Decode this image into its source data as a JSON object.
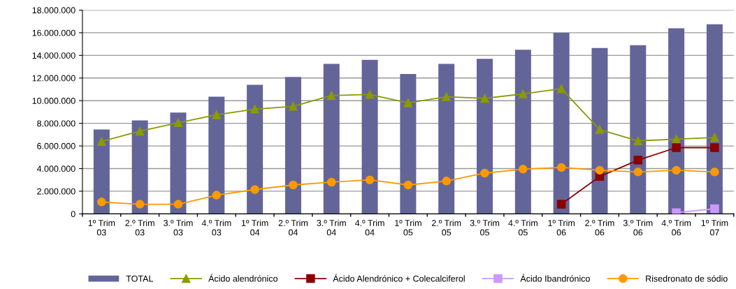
{
  "chart_data": {
    "type": "bar",
    "categories": [
      "1º Trim\n03",
      "2.º Trim\n03",
      "3.º Trim\n03",
      "4.º Trim\n03",
      "1º Trim\n04",
      "2.º Trim\n04",
      "3.º Trim\n04",
      "4.º Trim\n04",
      "1º Trim\n05",
      "2.º Trim\n05",
      "3.º Trim\n05",
      "4.º Trim\n05",
      "1º Trim\n06",
      "2.º Trim\n06",
      "3.º Trim\n06",
      "4.º Trim\n06",
      "1º Trim\n07"
    ],
    "series": [
      {
        "name": "TOTAL",
        "color": "#636599",
        "values": [
          7450000,
          8250000,
          8950000,
          10350000,
          11400000,
          12100000,
          13250000,
          13600000,
          12350000,
          13250000,
          13700000,
          14500000,
          16000000,
          14650000,
          14900000,
          16400000,
          16750000
        ]
      },
      {
        "name": "Ácido alendrónico",
        "type": "line",
        "color": "#8a9a00",
        "marker": "triangle",
        "values": [
          6400000,
          7300000,
          8050000,
          8750000,
          9250000,
          9500000,
          10450000,
          10550000,
          9800000,
          10350000,
          10200000,
          10600000,
          11050000,
          7450000,
          6450000,
          6600000,
          6750000
        ]
      },
      {
        "name": "Ácido Alendrónico + Colecalciferol",
        "type": "line",
        "color": "#8b0000",
        "marker": "square",
        "values": [
          null,
          null,
          null,
          null,
          null,
          null,
          null,
          null,
          null,
          null,
          null,
          null,
          850000,
          3300000,
          4750000,
          5850000,
          5850000
        ]
      },
      {
        "name": "Ácido Ibandrónico",
        "type": "line",
        "color": "#cc99ff",
        "marker": "square",
        "values": [
          null,
          null,
          null,
          null,
          null,
          null,
          null,
          null,
          null,
          null,
          null,
          null,
          null,
          null,
          null,
          100000,
          450000
        ]
      },
      {
        "name": "Risedronato de sódio",
        "type": "line",
        "color": "#ff9900",
        "marker": "circle",
        "values": [
          1050000,
          850000,
          850000,
          1650000,
          2150000,
          2550000,
          2800000,
          3000000,
          2550000,
          2900000,
          3600000,
          3950000,
          4100000,
          3850000,
          3700000,
          3850000,
          3700000
        ]
      }
    ],
    "ylim": [
      0,
      18000000
    ],
    "yticks": [
      0,
      {
        "value": 2000000,
        "label": "2.000.000"
      },
      {
        "value": 4000000,
        "label": "4.000.000"
      },
      {
        "value": 6000000,
        "label": "6.000.000"
      },
      {
        "value": 8000000,
        "label": "8.000.000"
      },
      {
        "value": 10000000,
        "label": "10.000.000"
      },
      {
        "value": 12000000,
        "label": "12.000.000"
      },
      {
        "value": 14000000,
        "label": "14.000.000"
      },
      {
        "value": 16000000,
        "label": "16.000.000"
      },
      {
        "value": 18000000,
        "label": "18.000.000"
      }
    ],
    "grid": "y",
    "legend": "bottom"
  }
}
